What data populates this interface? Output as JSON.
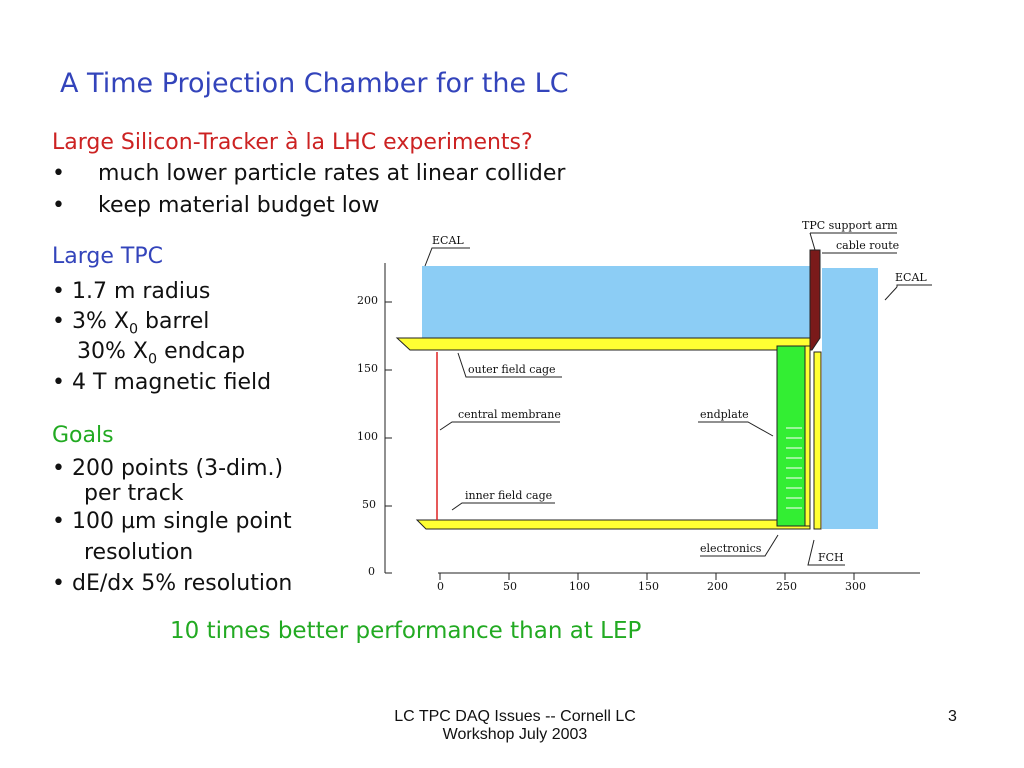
{
  "title": "A Time Projection Chamber for the LC",
  "silicon": {
    "heading": "Large Silicon-Tracker à la LHC experiments?",
    "bullets": [
      "much lower particle rates at linear collider",
      "keep material budget low"
    ]
  },
  "tpc": {
    "heading": "Large TPC",
    "b1": "1.7 m radius",
    "b2_pre": "3% X",
    "b2_sub": "0",
    "b2_post": " barrel",
    "b3_pre": "30% X",
    "b3_sub": "0",
    "b3_post": " endcap",
    "b4": "4 T magnetic field"
  },
  "goals": {
    "heading": "Goals",
    "g1a": "200 points (3-dim.)",
    "g1b": "per track",
    "g2a": "100 µm single point",
    "g2b": "resolution",
    "g3": "dE/dx  5% resolution"
  },
  "bullet_glyph": "•",
  "conclusion": "10 times better performance than at LEP",
  "diagram": {
    "labels": {
      "ecal_top": "ECAL",
      "ecal_right": "ECAL",
      "support_arm": "TPC  support arm",
      "cable_route": "cable route",
      "outer_field_cage": "outer field cage",
      "central_membrane": "central membrane",
      "endplate": "endplate",
      "inner_field_cage": "inner field cage",
      "electronics": "electronics",
      "fch": "FCH"
    },
    "y_ticks": [
      "200",
      "150",
      "100",
      "50",
      "0"
    ],
    "x_ticks": [
      "0",
      "50",
      "100",
      "150",
      "200",
      "250",
      "300"
    ],
    "colors": {
      "ecal": "#8ccdf5",
      "field_cage": "#ffff33",
      "endplate": "#33ee33",
      "support_arm": "#7a1a1a",
      "membrane": "#dd2222"
    }
  },
  "footer": {
    "line1": "LC TPC DAQ Issues -- Cornell LC",
    "line2": "Workshop July 2003",
    "page": "3"
  }
}
